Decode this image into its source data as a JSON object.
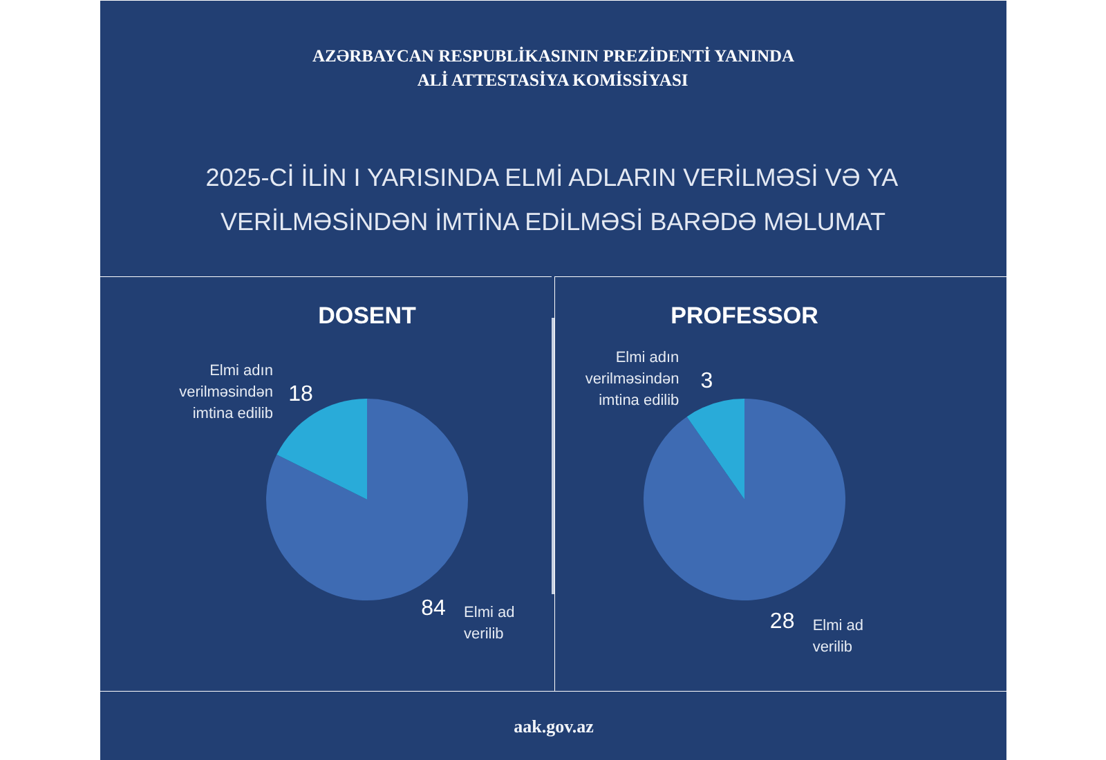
{
  "chart_data": [
    {
      "type": "other",
      "annotations": [
        "AZƏRBAYCAN RESPUBLİKASININ PREZİDENTİ YANINDA ALİ ATTESTASİYA KOMİSSİYASI"
      ],
      "title": "2025-Cİ İLİN I YARISINDA ELMİ ADLARIN VERİLMƏSİ VƏ YA VERİLMƏSİNDƏN İMTİNA EDİLMƏSİ BARƏDƏ MƏLUMAT"
    },
    {
      "type": "pie",
      "title": "DOSENT",
      "categories": [
        "Elmi ad verilib",
        "Elmi adın verilməsindən imtina edilib"
      ],
      "values": [
        84,
        18
      ],
      "colors": [
        "#3e6bb3",
        "#29abd9"
      ],
      "data_labels": true
    },
    {
      "type": "pie",
      "title": "PROFESSOR",
      "categories": [
        "Elmi ad verilib",
        "Elmi adın verilməsindən imtina edilib"
      ],
      "values": [
        28,
        3
      ],
      "colors": [
        "#3e6bb3",
        "#29abd9"
      ],
      "data_labels": true
    },
    {
      "type": "other",
      "annotations": [
        "aak.gov.az"
      ]
    }
  ]
}
